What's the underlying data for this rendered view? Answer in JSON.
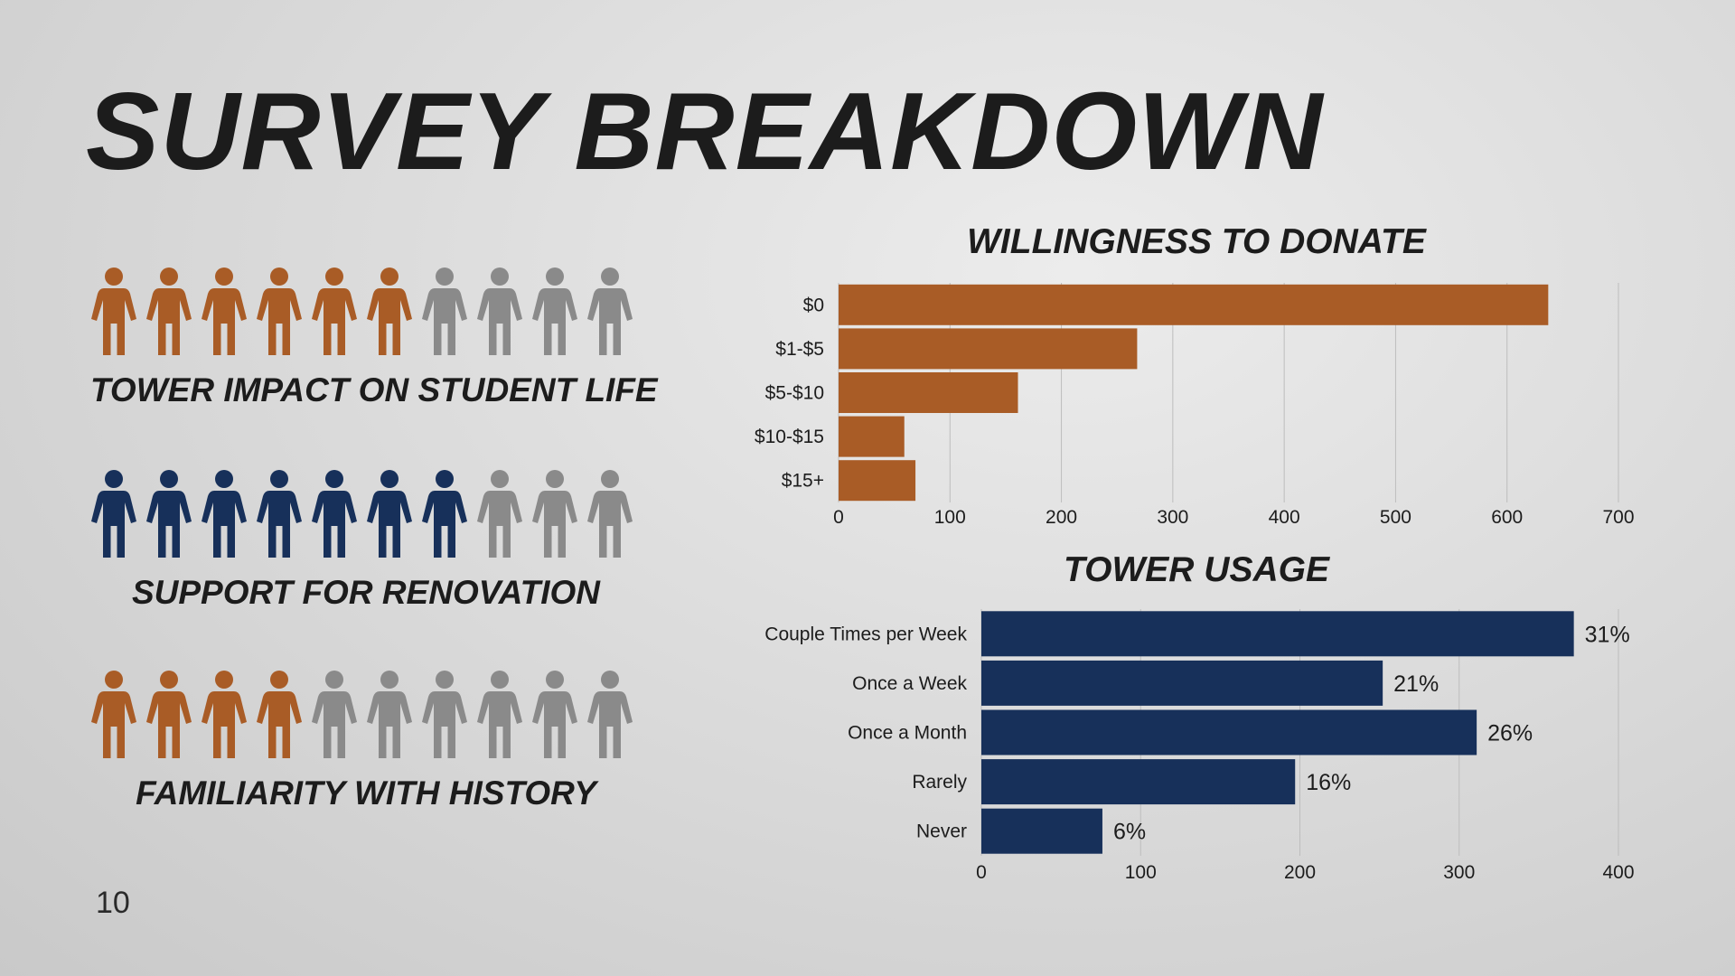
{
  "title": "SURVEY BREAKDOWN",
  "page_number": "10",
  "colors": {
    "orange": "#A95C26",
    "navy": "#17305A",
    "gray": "#8A8A8A",
    "grid": "#BDBDBD"
  },
  "pictographs": [
    {
      "label": "TOWER IMPACT ON STUDENT LIFE",
      "filled": 6,
      "total": 10,
      "color": "#A95C26"
    },
    {
      "label": "SUPPORT FOR RENOVATION",
      "filled": 7,
      "total": 10,
      "color": "#17305A"
    },
    {
      "label": "FAMILIARITY WITH HISTORY",
      "filled": 4,
      "total": 10,
      "color": "#A95C26"
    }
  ],
  "chart_data": [
    {
      "type": "bar",
      "orientation": "horizontal",
      "title": "WILLINGNESS TO DONATE",
      "categories": [
        "$0",
        "$1-$5",
        "$5-$10",
        "$10-$15",
        "$15+"
      ],
      "values": [
        637,
        268,
        161,
        59,
        69
      ],
      "xlim": [
        0,
        700
      ],
      "xticks": [
        "0",
        "100",
        "200",
        "300",
        "400",
        "500",
        "600",
        "700"
      ],
      "grid": true,
      "color": "#A95C26"
    },
    {
      "type": "bar",
      "orientation": "horizontal",
      "title": "TOWER USAGE",
      "categories": [
        "Couple Times per Week",
        "Once a Week",
        "Once a Month",
        "Rarely",
        "Never"
      ],
      "values": [
        372,
        252,
        311,
        197,
        76
      ],
      "data_labels": [
        "31%",
        "21%",
        "26%",
        "16%",
        "6%"
      ],
      "xlim": [
        0,
        400
      ],
      "xticks": [
        "0",
        "100",
        "200",
        "300",
        "400"
      ],
      "grid": true,
      "color": "#17305A"
    }
  ]
}
